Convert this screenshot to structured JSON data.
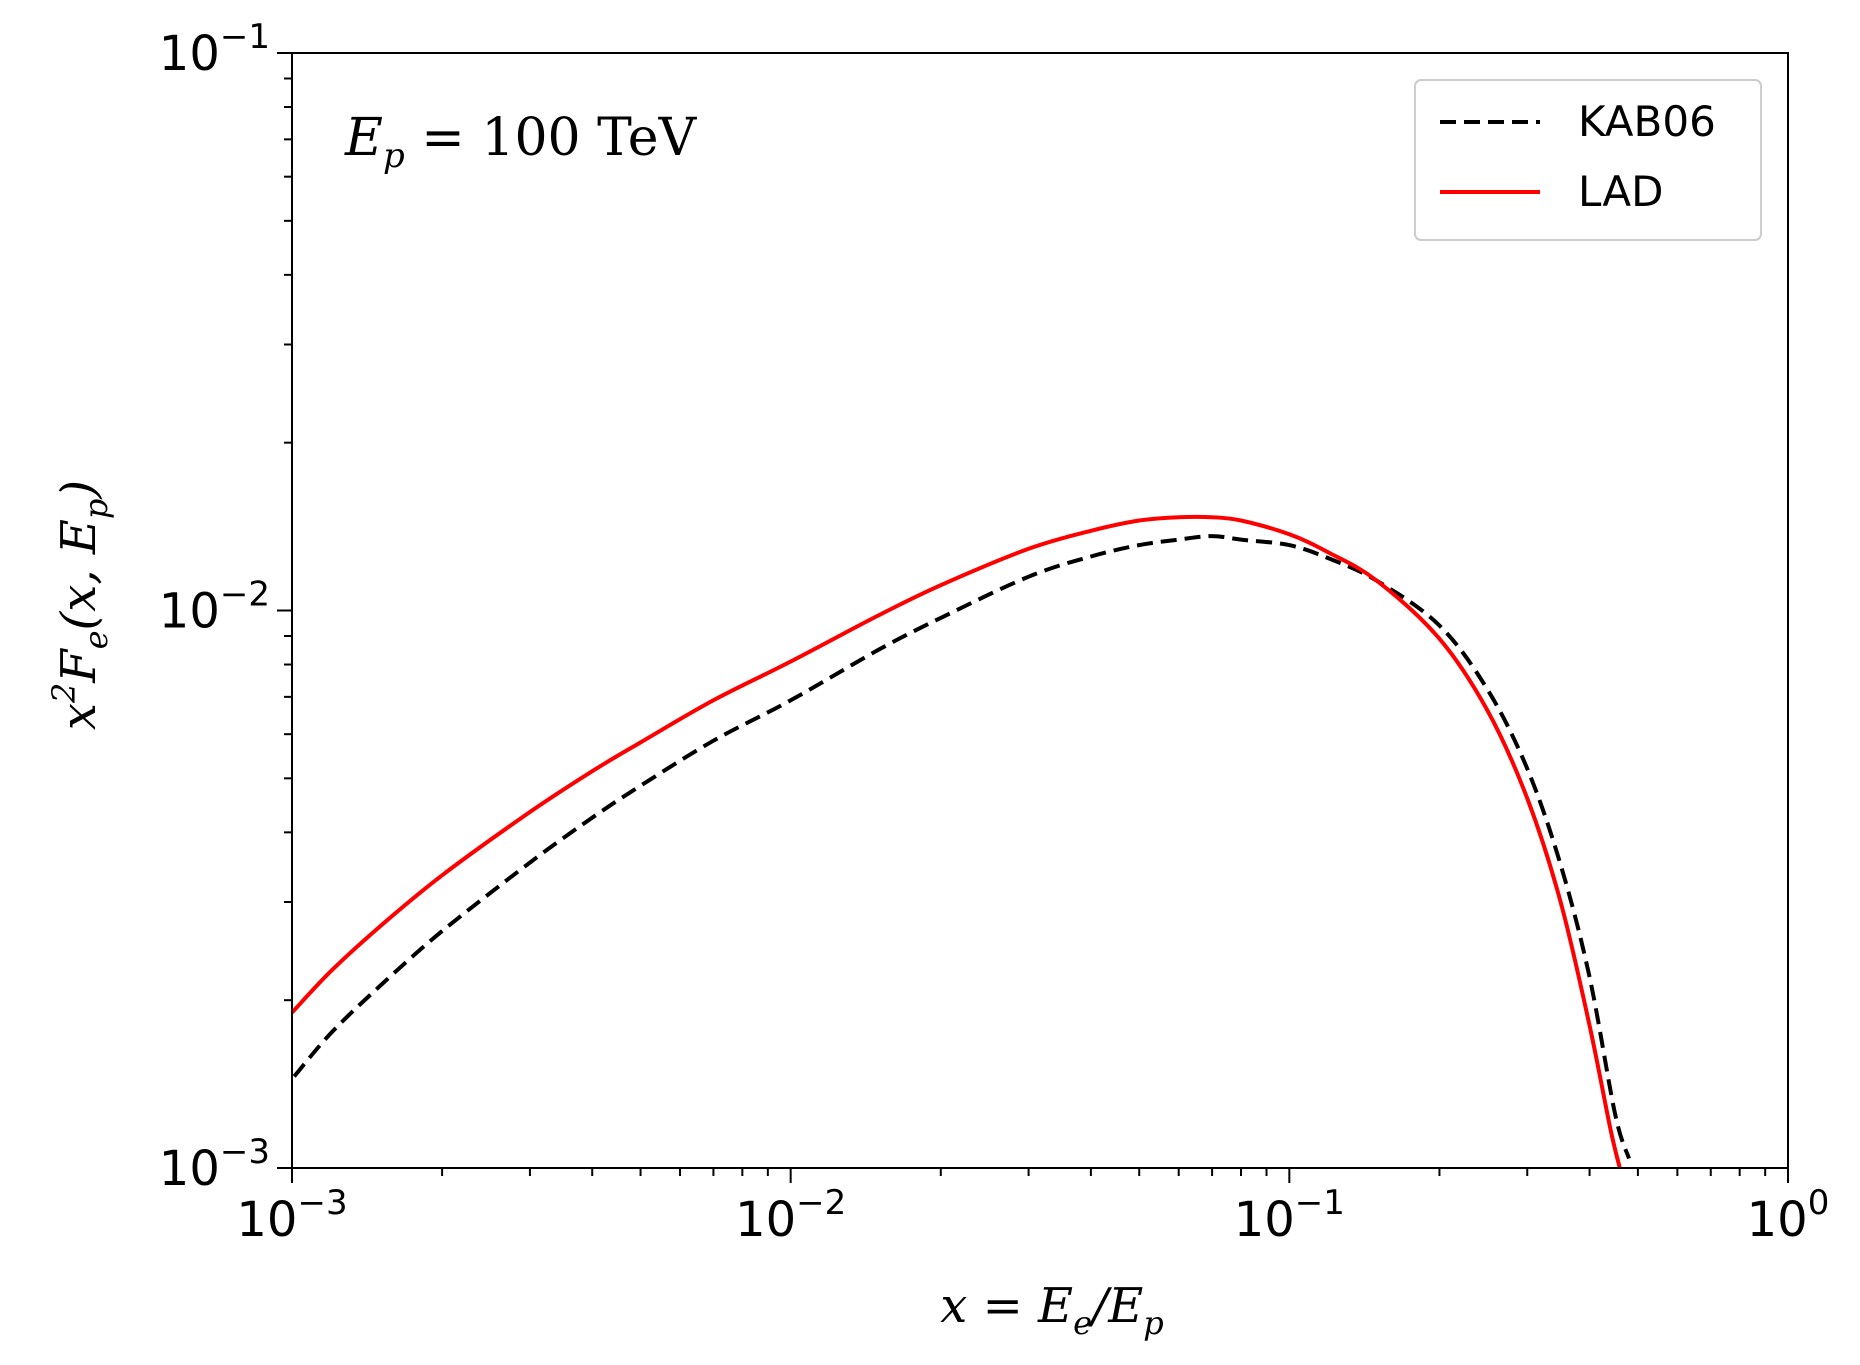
{
  "chart_data": {
    "type": "line",
    "xscale": "log",
    "yscale": "log",
    "xlim": [
      0.001,
      1
    ],
    "ylim": [
      0.001,
      0.1
    ],
    "xlabel": "x = E_e/E_p",
    "ylabel": "x^2 F_e(x, E_p)",
    "annotation": "E_p = 100 TeV",
    "grid": false,
    "legend_position": "top-right",
    "x_ticks": [
      {
        "value": 0.001,
        "base": "10",
        "exp": "−3"
      },
      {
        "value": 0.01,
        "base": "10",
        "exp": "−2"
      },
      {
        "value": 0.1,
        "base": "10",
        "exp": "−1"
      },
      {
        "value": 1,
        "base": "10",
        "exp": "0"
      }
    ],
    "y_ticks": [
      {
        "value": 0.001,
        "base": "10",
        "exp": "−3"
      },
      {
        "value": 0.01,
        "base": "10",
        "exp": "−2"
      },
      {
        "value": 0.1,
        "base": "10",
        "exp": "−1"
      }
    ],
    "series": [
      {
        "name": "KAB06",
        "color": "#000000",
        "style": "dashed",
        "points": [
          [
            0.00101,
            0.00146
          ],
          [
            0.0012,
            0.00175
          ],
          [
            0.0015,
            0.00212
          ],
          [
            0.002,
            0.00266
          ],
          [
            0.003,
            0.00353
          ],
          [
            0.004,
            0.00425
          ],
          [
            0.005,
            0.00485
          ],
          [
            0.007,
            0.00584
          ],
          [
            0.01,
            0.0069
          ],
          [
            0.015,
            0.0085
          ],
          [
            0.02,
            0.0097
          ],
          [
            0.03,
            0.0115
          ],
          [
            0.04,
            0.0125
          ],
          [
            0.05,
            0.0131
          ],
          [
            0.06,
            0.0134
          ],
          [
            0.07,
            0.0136
          ],
          [
            0.08,
            0.0134
          ],
          [
            0.1,
            0.0131
          ],
          [
            0.12,
            0.0124
          ],
          [
            0.15,
            0.0113
          ],
          [
            0.2,
            0.0094
          ],
          [
            0.25,
            0.0072
          ],
          [
            0.3,
            0.0052
          ],
          [
            0.35,
            0.0035
          ],
          [
            0.4,
            0.0022
          ],
          [
            0.45,
            0.00125
          ],
          [
            0.48,
            0.00104
          ]
        ]
      },
      {
        "name": "LAD",
        "color": "#ff0000",
        "style": "solid",
        "points": [
          [
            0.001,
            0.0019
          ],
          [
            0.0012,
            0.00226
          ],
          [
            0.0015,
            0.00271
          ],
          [
            0.002,
            0.00335
          ],
          [
            0.003,
            0.00435
          ],
          [
            0.004,
            0.00515
          ],
          [
            0.005,
            0.0058
          ],
          [
            0.007,
            0.0069
          ],
          [
            0.01,
            0.0081
          ],
          [
            0.015,
            0.0098
          ],
          [
            0.02,
            0.0111
          ],
          [
            0.03,
            0.0129
          ],
          [
            0.04,
            0.0139
          ],
          [
            0.05,
            0.0145
          ],
          [
            0.06,
            0.0147
          ],
          [
            0.07,
            0.0147
          ],
          [
            0.08,
            0.0145
          ],
          [
            0.1,
            0.0137
          ],
          [
            0.12,
            0.0127
          ],
          [
            0.15,
            0.0113
          ],
          [
            0.2,
            0.0089
          ],
          [
            0.25,
            0.0066
          ],
          [
            0.3,
            0.0046
          ],
          [
            0.35,
            0.003
          ],
          [
            0.4,
            0.0018
          ],
          [
            0.44,
            0.00118
          ],
          [
            0.46,
            0.001
          ]
        ]
      }
    ]
  }
}
